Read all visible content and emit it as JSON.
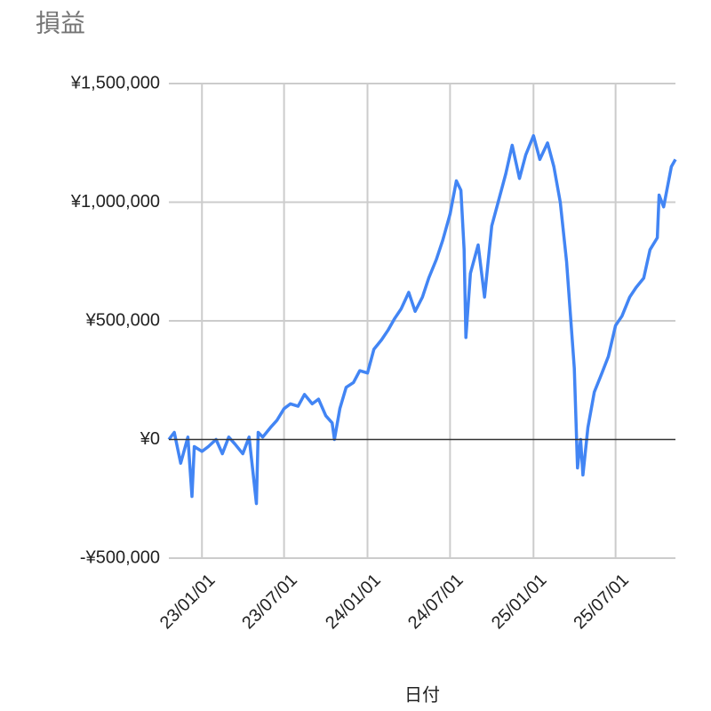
{
  "chart_data": {
    "type": "line",
    "title": "損益",
    "x_label": "日付",
    "color": "#4285f4",
    "grid": true,
    "x": [
      "22/10/20",
      "22/11/01",
      "22/11/15",
      "22/12/01",
      "22/12/10",
      "22/12/15",
      "23/01/01",
      "23/01/15",
      "23/02/01",
      "23/02/15",
      "23/03/01",
      "23/03/15",
      "23/04/01",
      "23/04/15",
      "23/05/01",
      "23/05/05",
      "23/05/15",
      "23/06/01",
      "23/06/15",
      "23/07/01",
      "23/07/15",
      "23/08/01",
      "23/08/15",
      "23/09/01",
      "23/09/15",
      "23/10/01",
      "23/10/15",
      "23/10/20",
      "23/11/01",
      "23/11/15",
      "23/12/01",
      "23/12/15",
      "24/01/01",
      "24/01/15",
      "24/02/01",
      "24/02/15",
      "24/03/01",
      "24/03/15",
      "24/04/01",
      "24/04/15",
      "24/05/01",
      "24/05/15",
      "24/06/01",
      "24/06/15",
      "24/07/01",
      "24/07/15",
      "24/07/25",
      "24/08/01",
      "24/08/05",
      "24/08/15",
      "24/09/01",
      "24/09/15",
      "24/10/01",
      "24/10/15",
      "24/11/01",
      "24/11/15",
      "24/12/01",
      "24/12/15",
      "25/01/01",
      "25/01/15",
      "25/02/01",
      "25/02/15",
      "25/03/01",
      "25/03/15",
      "25/04/01",
      "25/04/08",
      "25/04/15",
      "25/04/20",
      "25/05/01",
      "25/05/15",
      "25/06/01",
      "25/06/15",
      "25/07/01",
      "25/07/15",
      "25/08/01",
      "25/08/15",
      "25/09/01",
      "25/09/15",
      "25/10/01",
      "25/10/05",
      "25/10/15",
      "25/11/01",
      "25/11/10"
    ],
    "values": [
      0,
      30000,
      -100000,
      10000,
      -240000,
      -30000,
      -50000,
      -30000,
      0,
      -60000,
      10000,
      -20000,
      -60000,
      10000,
      -270000,
      30000,
      10000,
      50000,
      80000,
      130000,
      150000,
      140000,
      190000,
      150000,
      170000,
      100000,
      70000,
      0,
      130000,
      220000,
      240000,
      290000,
      280000,
      380000,
      420000,
      460000,
      510000,
      550000,
      620000,
      540000,
      600000,
      680000,
      760000,
      840000,
      950000,
      1090000,
      1050000,
      800000,
      430000,
      700000,
      820000,
      600000,
      900000,
      1000000,
      1120000,
      1240000,
      1100000,
      1200000,
      1280000,
      1180000,
      1250000,
      1150000,
      1000000,
      750000,
      300000,
      -120000,
      0,
      -150000,
      50000,
      200000,
      280000,
      350000,
      480000,
      520000,
      600000,
      640000,
      680000,
      800000,
      850000,
      1030000,
      980000,
      1150000,
      1180000
    ],
    "xlim": [
      "22/10/20",
      "25/11/10"
    ],
    "xticks": [
      "23/01/01",
      "23/07/01",
      "24/01/01",
      "24/07/01",
      "25/01/01",
      "25/07/01"
    ],
    "ylim": [
      -500000,
      1500000
    ],
    "yticks": [
      {
        "value": -500000,
        "label": "-¥500,000"
      },
      {
        "value": 0,
        "label": "¥0"
      },
      {
        "value": 500000,
        "label": "¥500,000"
      },
      {
        "value": 1000000,
        "label": "¥1,000,000"
      },
      {
        "value": 1500000,
        "label": "¥1,500,000"
      }
    ]
  }
}
